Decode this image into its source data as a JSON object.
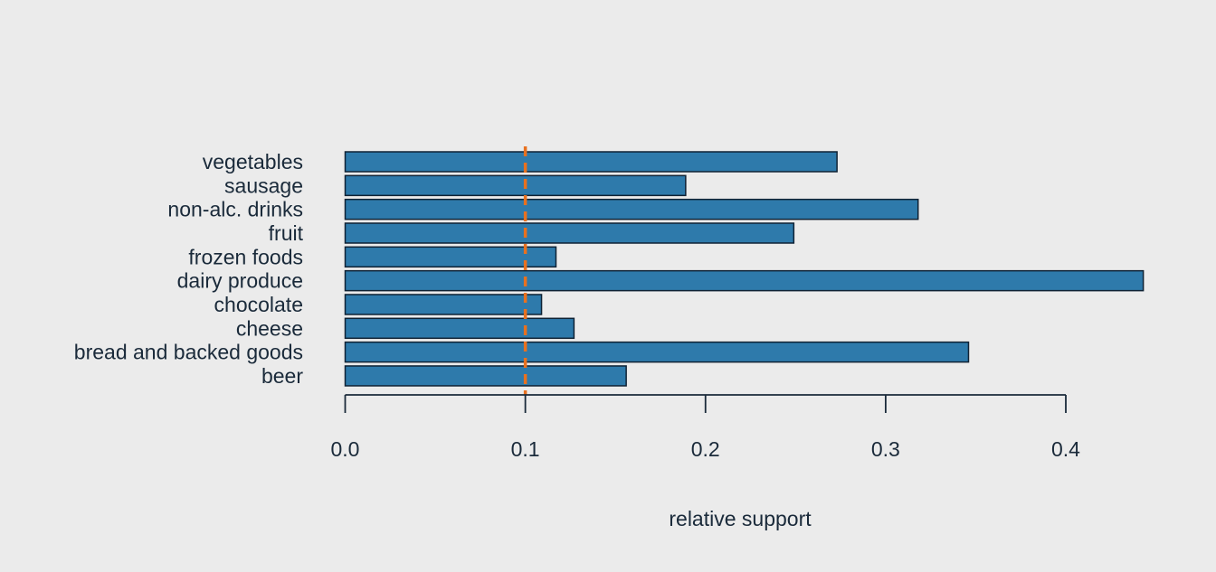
{
  "chart_data": {
    "type": "bar",
    "orientation": "horizontal",
    "categories": [
      "vegetables",
      "sausage",
      "non-alc. drinks",
      "fruit",
      "frozen foods",
      "dairy produce",
      "chocolate",
      "cheese",
      "bread and backed goods",
      "beer"
    ],
    "values": [
      0.273,
      0.189,
      0.318,
      0.249,
      0.117,
      0.443,
      0.109,
      0.127,
      0.346,
      0.156
    ],
    "xlabel": "relative support",
    "ylabel": "",
    "title": "",
    "xlim": [
      0,
      0.4
    ],
    "xticks": [
      0.0,
      0.1,
      0.2,
      0.3,
      0.4
    ],
    "xtick_labels": [
      "0.0",
      "0.1",
      "0.2",
      "0.3",
      "0.4"
    ],
    "reference_line": {
      "x": 0.1,
      "style": "dashed"
    },
    "grid": false,
    "legend": "none"
  },
  "colors": {
    "background": "#ebebeb",
    "bar_fill": "#2e7aab",
    "bar_edge": "#0f2234",
    "reference_line": "#e8711f",
    "text": "#1a2a3a"
  }
}
